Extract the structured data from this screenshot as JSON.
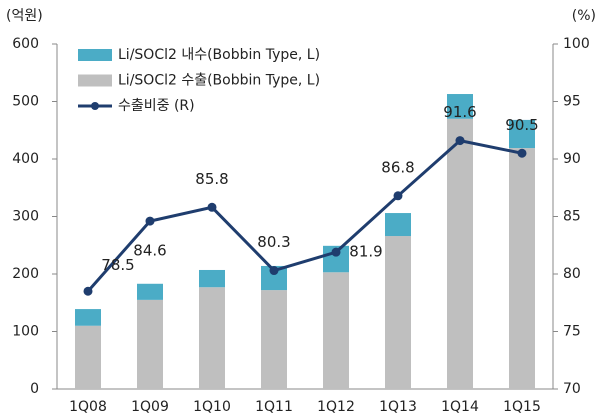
{
  "chart_data": {
    "type": "bar+line",
    "y_label": "(억원)",
    "y2_label": "(%)",
    "categories": [
      "1Q08",
      "1Q09",
      "1Q10",
      "1Q11",
      "1Q12",
      "1Q13",
      "1Q14",
      "1Q15"
    ],
    "series": [
      {
        "name": "Li/SOCl2 내수(Bobbin Type, L)",
        "color": "#4bacc6",
        "type": "bar",
        "values": [
          29,
          28,
          30,
          42,
          46,
          40,
          43,
          49
        ]
      },
      {
        "name": "Li/SOCl2 수출(Bobbin Type, L)",
        "color": "#bfbfbf",
        "type": "bar",
        "values": [
          110,
          155,
          177,
          172,
          203,
          266,
          470,
          419
        ]
      },
      {
        "name": "수출비중 (R)",
        "color": "#1f3d6e",
        "type": "line",
        "axis": "y2",
        "values": [
          78.5,
          84.6,
          85.8,
          80.3,
          81.9,
          86.8,
          91.6,
          90.5
        ]
      }
    ],
    "ylim": [
      0,
      600
    ],
    "yticks": [
      0,
      100,
      200,
      300,
      400,
      500,
      600
    ],
    "y2lim": [
      70,
      100
    ],
    "y2ticks": [
      70,
      75,
      80,
      85,
      90,
      95,
      100
    ],
    "grid": false,
    "legend": "upper left"
  }
}
